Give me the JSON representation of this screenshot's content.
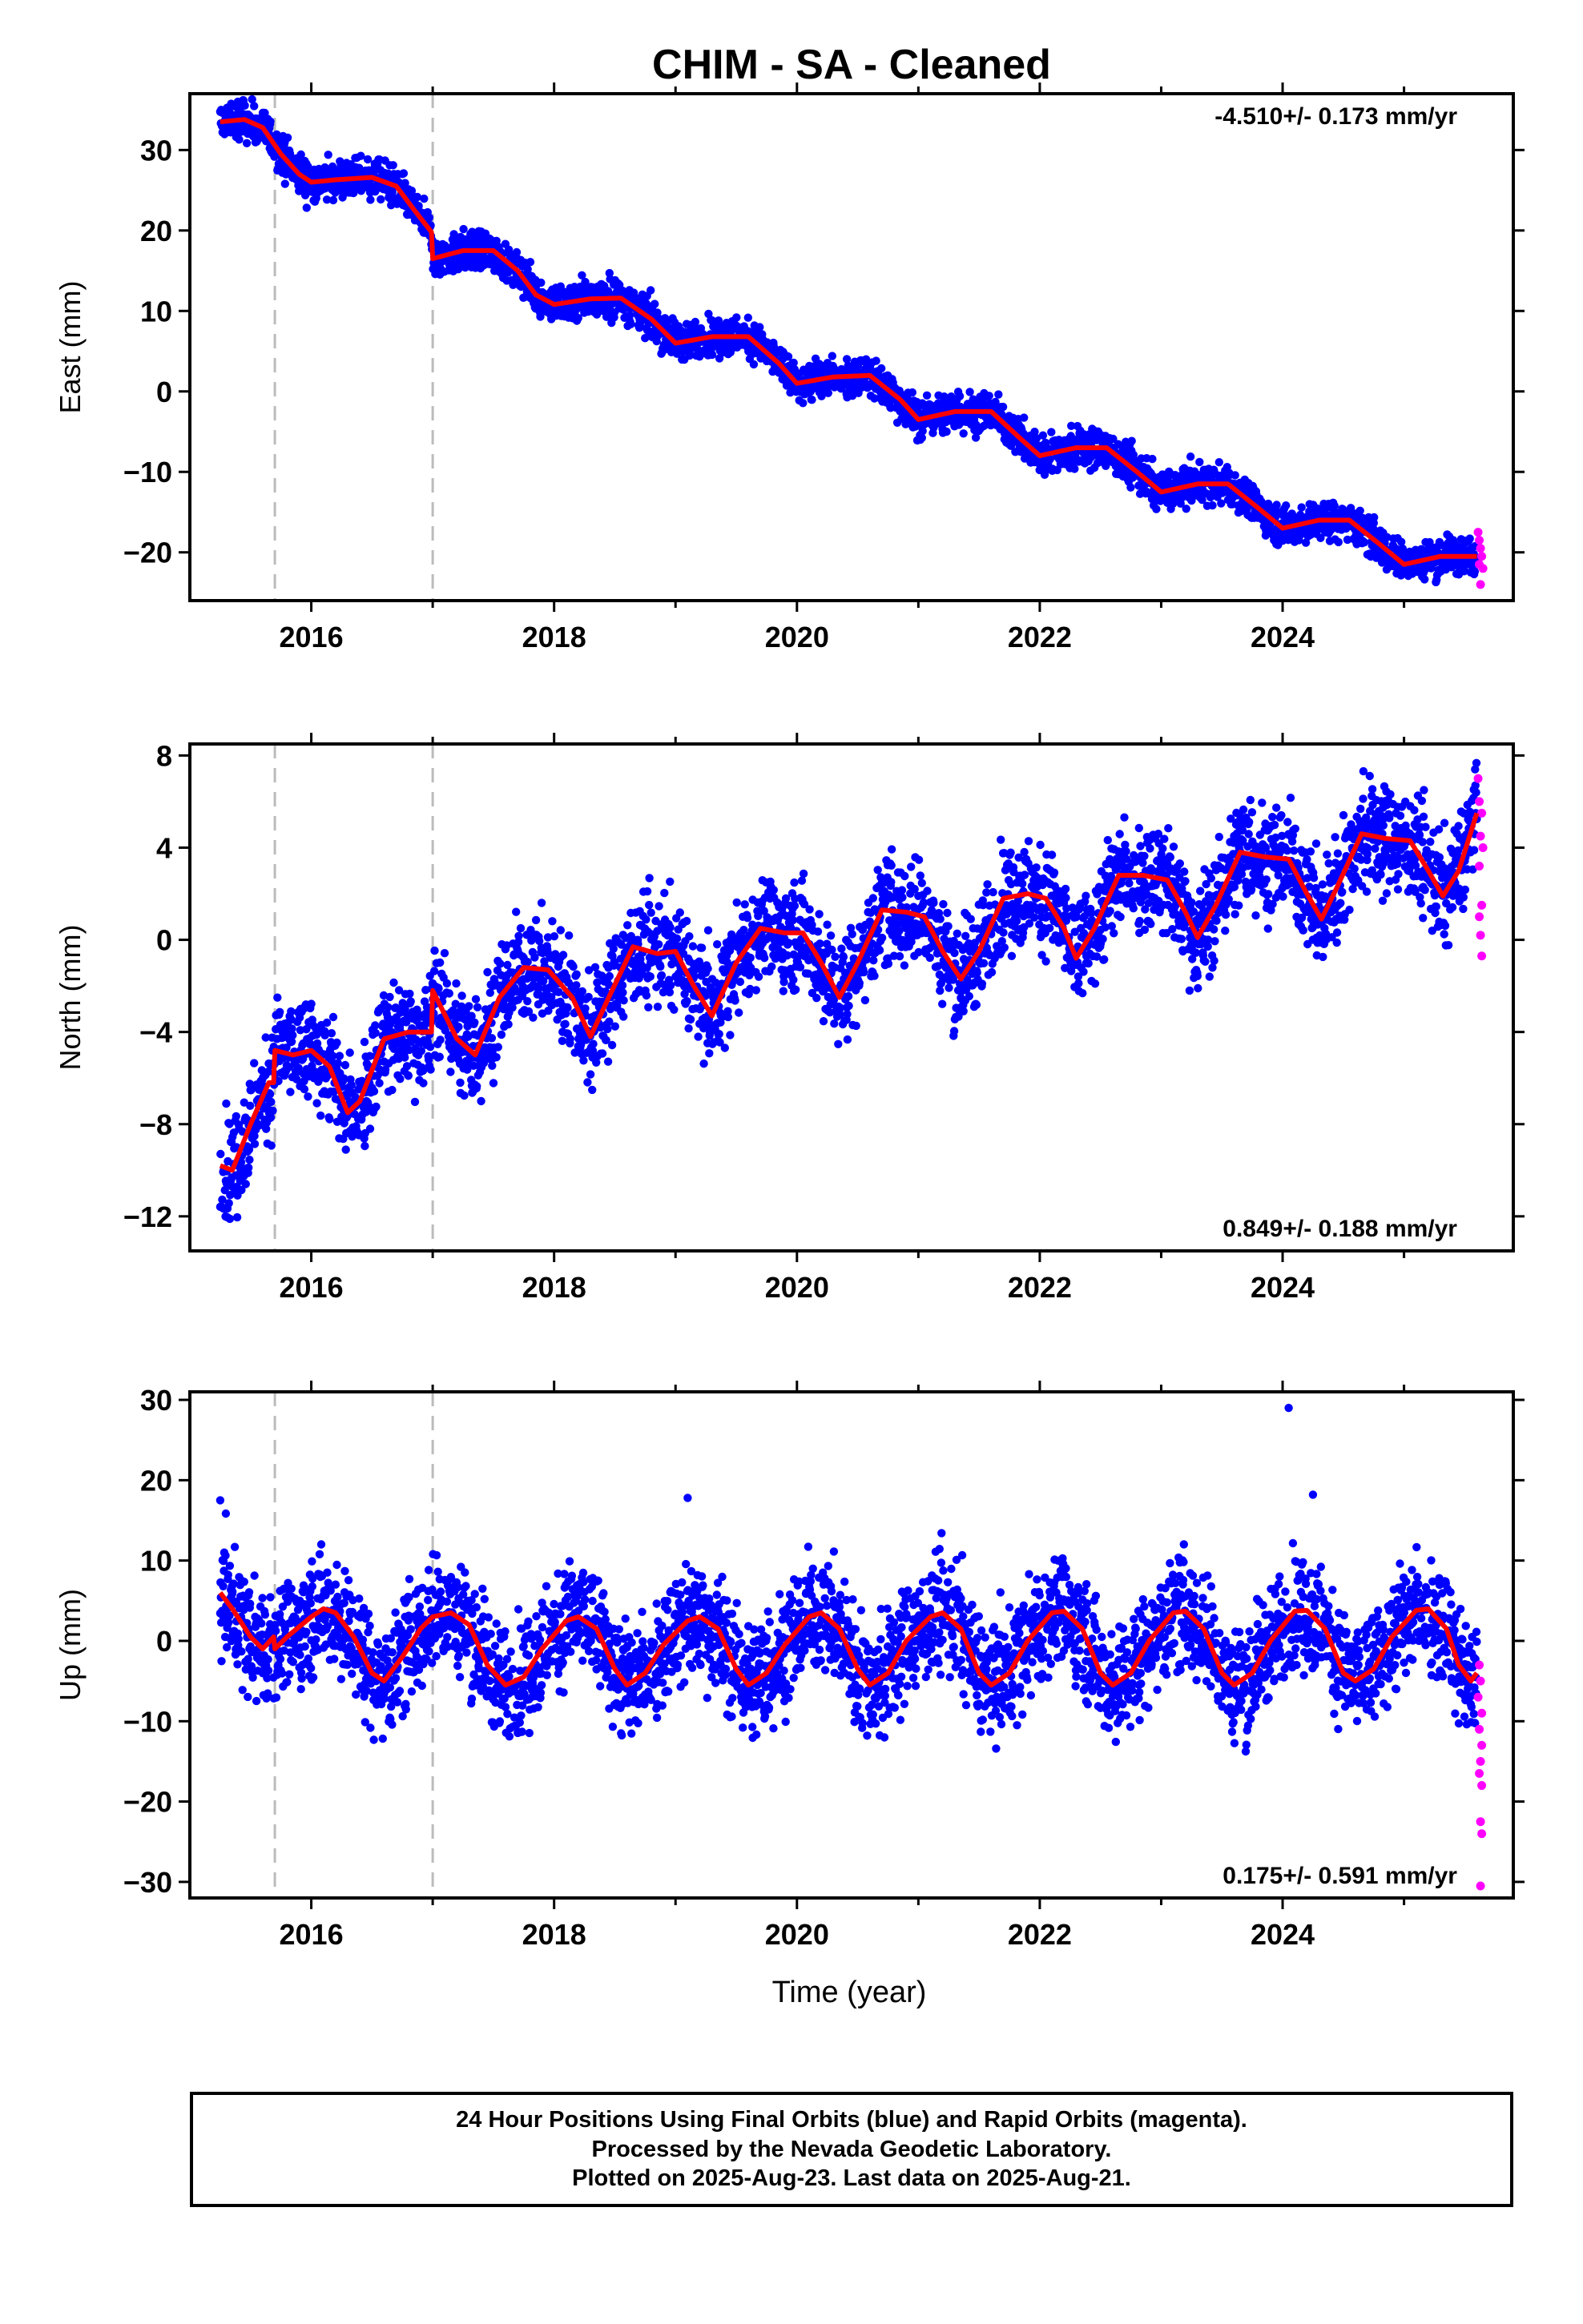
{
  "colors": {
    "final": "#0000ff",
    "rapid": "#ff00ff",
    "model": "#ff0000",
    "steps": "#bbbbbb"
  },
  "chart_data": {
    "type": "scatter",
    "title": "CHIM  - SA - Cleaned",
    "xlabel": "Time (year)",
    "xlim": [
      2015.0,
      2025.9
    ],
    "steps": [
      2015.7,
      2017.0
    ],
    "panels": [
      {
        "ylabel": "East (mm)",
        "ylim": [
          -26,
          37
        ],
        "yticks": [
          -20,
          -10,
          0,
          10,
          20,
          30
        ],
        "rate": "-4.510+/- 0.173 mm/yr",
        "rate_pos": "top-right",
        "noise": 1.2,
        "model": [
          [
            2015.25,
            33.5
          ],
          [
            2015.45,
            33.8
          ],
          [
            2015.6,
            32.8
          ],
          [
            2015.75,
            29.5
          ],
          [
            2015.9,
            27
          ],
          [
            2016.0,
            26
          ],
          [
            2016.2,
            26.3
          ],
          [
            2016.5,
            26.6
          ],
          [
            2016.7,
            25.5
          ],
          [
            2016.85,
            22.5
          ],
          [
            2016.99,
            19.8
          ],
          [
            2017.0,
            16.5
          ],
          [
            2017.25,
            17.5
          ],
          [
            2017.5,
            17.5
          ],
          [
            2017.7,
            15
          ],
          [
            2017.85,
            12
          ],
          [
            2018.0,
            10.8
          ],
          [
            2018.3,
            11.5
          ],
          [
            2018.55,
            11.6
          ],
          [
            2018.8,
            9
          ],
          [
            2019.0,
            6
          ],
          [
            2019.3,
            6.8
          ],
          [
            2019.6,
            6.8
          ],
          [
            2019.85,
            3.5
          ],
          [
            2020.0,
            1
          ],
          [
            2020.3,
            1.8
          ],
          [
            2020.6,
            2
          ],
          [
            2020.85,
            -1
          ],
          [
            2021.0,
            -3.5
          ],
          [
            2021.3,
            -2.5
          ],
          [
            2021.6,
            -2.5
          ],
          [
            2021.85,
            -6
          ],
          [
            2022.0,
            -8
          ],
          [
            2022.3,
            -7
          ],
          [
            2022.55,
            -7
          ],
          [
            2022.8,
            -10
          ],
          [
            2023.0,
            -12.5
          ],
          [
            2023.3,
            -11.5
          ],
          [
            2023.55,
            -11.5
          ],
          [
            2023.8,
            -14.5
          ],
          [
            2024.0,
            -17
          ],
          [
            2024.3,
            -16
          ],
          [
            2024.55,
            -16
          ],
          [
            2024.8,
            -19
          ],
          [
            2025.0,
            -21.5
          ],
          [
            2025.3,
            -20.5
          ],
          [
            2025.6,
            -20.5
          ]
        ],
        "rapid": [
          [
            2025.61,
            -17.5
          ],
          [
            2025.62,
            -18.5
          ],
          [
            2025.63,
            -19.5
          ],
          [
            2025.64,
            -20.5
          ],
          [
            2025.62,
            -21.5
          ],
          [
            2025.65,
            -22
          ],
          [
            2025.63,
            -24
          ]
        ]
      },
      {
        "ylabel": "North (mm)",
        "ylim": [
          -13.5,
          8.5
        ],
        "yticks": [
          -12,
          -8,
          -4,
          0,
          4,
          8
        ],
        "rate": "0.849+/- 0.188 mm/yr",
        "rate_pos": "bottom-right",
        "noise": 1.15,
        "model": [
          [
            2015.25,
            -9.8
          ],
          [
            2015.35,
            -10
          ],
          [
            2015.5,
            -8
          ],
          [
            2015.65,
            -6.2
          ],
          [
            2015.69,
            -6.2
          ],
          [
            2015.7,
            -4.8
          ],
          [
            2015.85,
            -5
          ],
          [
            2016.0,
            -4.8
          ],
          [
            2016.15,
            -5.5
          ],
          [
            2016.3,
            -7.5
          ],
          [
            2016.4,
            -7
          ],
          [
            2016.6,
            -4.3
          ],
          [
            2016.8,
            -4
          ],
          [
            2016.99,
            -4
          ],
          [
            2017.0,
            -2.2
          ],
          [
            2017.2,
            -4.3
          ],
          [
            2017.35,
            -5
          ],
          [
            2017.55,
            -2.5
          ],
          [
            2017.75,
            -1.2
          ],
          [
            2017.95,
            -1.3
          ],
          [
            2018.15,
            -2.5
          ],
          [
            2018.3,
            -4.2
          ],
          [
            2018.45,
            -2.5
          ],
          [
            2018.65,
            -0.3
          ],
          [
            2018.85,
            -0.6
          ],
          [
            2019.0,
            -0.5
          ],
          [
            2019.15,
            -2
          ],
          [
            2019.3,
            -3.3
          ],
          [
            2019.5,
            -1
          ],
          [
            2019.7,
            0.5
          ],
          [
            2019.9,
            0.3
          ],
          [
            2020.05,
            0.3
          ],
          [
            2020.2,
            -1
          ],
          [
            2020.35,
            -2.5
          ],
          [
            2020.5,
            -1
          ],
          [
            2020.7,
            1.3
          ],
          [
            2020.9,
            1.2
          ],
          [
            2021.05,
            1
          ],
          [
            2021.2,
            -0.5
          ],
          [
            2021.35,
            -1.7
          ],
          [
            2021.5,
            -0.5
          ],
          [
            2021.7,
            1.8
          ],
          [
            2021.9,
            2
          ],
          [
            2022.05,
            1.8
          ],
          [
            2022.2,
            0.5
          ],
          [
            2022.3,
            -0.8
          ],
          [
            2022.45,
            0.5
          ],
          [
            2022.65,
            2.8
          ],
          [
            2022.85,
            2.8
          ],
          [
            2023.05,
            2.6
          ],
          [
            2023.2,
            1.2
          ],
          [
            2023.3,
            0.1
          ],
          [
            2023.45,
            1.5
          ],
          [
            2023.65,
            3.8
          ],
          [
            2023.85,
            3.6
          ],
          [
            2024.05,
            3.5
          ],
          [
            2024.2,
            2
          ],
          [
            2024.32,
            0.9
          ],
          [
            2024.45,
            2.3
          ],
          [
            2024.65,
            4.6
          ],
          [
            2024.85,
            4.4
          ],
          [
            2025.05,
            4.3
          ],
          [
            2025.2,
            3
          ],
          [
            2025.32,
            1.9
          ],
          [
            2025.45,
            3
          ],
          [
            2025.6,
            5.5
          ]
        ],
        "rapid": [
          [
            2025.61,
            7
          ],
          [
            2025.62,
            6
          ],
          [
            2025.64,
            5.5
          ],
          [
            2025.63,
            4.5
          ],
          [
            2025.65,
            4
          ],
          [
            2025.62,
            3.2
          ],
          [
            2025.64,
            1.5
          ],
          [
            2025.62,
            1
          ],
          [
            2025.63,
            0.2
          ],
          [
            2025.64,
            -0.7
          ]
        ]
      },
      {
        "ylabel": "Up (mm)",
        "ylim": [
          -32,
          31
        ],
        "yticks": [
          -30,
          -20,
          -10,
          0,
          10,
          20,
          30
        ],
        "rate": "0.175+/- 0.591 mm/yr",
        "rate_pos": "bottom-right",
        "noise": 3.6,
        "model": [
          [
            2015.25,
            6
          ],
          [
            2015.35,
            4
          ],
          [
            2015.5,
            0.5
          ],
          [
            2015.6,
            -1
          ],
          [
            2015.69,
            0.5
          ],
          [
            2015.7,
            -1
          ],
          [
            2015.8,
            0.5
          ],
          [
            2016.0,
            3
          ],
          [
            2016.1,
            4
          ],
          [
            2016.2,
            3.5
          ],
          [
            2016.35,
            0.5
          ],
          [
            2016.5,
            -4
          ],
          [
            2016.6,
            -5
          ],
          [
            2016.75,
            -2
          ],
          [
            2016.9,
            1.5
          ],
          [
            2017.0,
            3
          ],
          [
            2017.15,
            3.5
          ],
          [
            2017.3,
            2
          ],
          [
            2017.45,
            -3
          ],
          [
            2017.6,
            -5.5
          ],
          [
            2017.75,
            -4.5
          ],
          [
            2017.9,
            -1
          ],
          [
            2018.1,
            2.5
          ],
          [
            2018.2,
            3
          ],
          [
            2018.35,
            1.5
          ],
          [
            2018.5,
            -3.5
          ],
          [
            2018.6,
            -5.5
          ],
          [
            2018.75,
            -4
          ],
          [
            2018.9,
            -0.5
          ],
          [
            2019.1,
            2.5
          ],
          [
            2019.2,
            3
          ],
          [
            2019.35,
            1.5
          ],
          [
            2019.5,
            -3.5
          ],
          [
            2019.6,
            -5.5
          ],
          [
            2019.75,
            -4
          ],
          [
            2019.9,
            -0.5
          ],
          [
            2020.1,
            3
          ],
          [
            2020.2,
            3.5
          ],
          [
            2020.35,
            1.5
          ],
          [
            2020.5,
            -3.5
          ],
          [
            2020.6,
            -5.5
          ],
          [
            2020.75,
            -4
          ],
          [
            2020.9,
            0
          ],
          [
            2021.1,
            3
          ],
          [
            2021.2,
            3.5
          ],
          [
            2021.35,
            1.5
          ],
          [
            2021.5,
            -4
          ],
          [
            2021.6,
            -5.5
          ],
          [
            2021.75,
            -4
          ],
          [
            2021.9,
            0
          ],
          [
            2022.1,
            3.5
          ],
          [
            2022.2,
            3.7
          ],
          [
            2022.35,
            1.5
          ],
          [
            2022.5,
            -4
          ],
          [
            2022.6,
            -5.5
          ],
          [
            2022.75,
            -4
          ],
          [
            2022.9,
            0
          ],
          [
            2023.1,
            3.5
          ],
          [
            2023.2,
            3.7
          ],
          [
            2023.35,
            1.5
          ],
          [
            2023.5,
            -4
          ],
          [
            2023.6,
            -5.5
          ],
          [
            2023.75,
            -4
          ],
          [
            2023.9,
            0
          ],
          [
            2024.1,
            3.7
          ],
          [
            2024.2,
            3.8
          ],
          [
            2024.35,
            1.5
          ],
          [
            2024.5,
            -4
          ],
          [
            2024.6,
            -5
          ],
          [
            2024.75,
            -3.5
          ],
          [
            2024.9,
            0.5
          ],
          [
            2025.1,
            3.8
          ],
          [
            2025.2,
            4
          ],
          [
            2025.35,
            1.5
          ],
          [
            2025.45,
            -3
          ],
          [
            2025.55,
            -5
          ],
          [
            2025.6,
            -4
          ]
        ],
        "outliers": [
          [
            2015.25,
            17.5
          ],
          [
            2019.1,
            17.8
          ],
          [
            2024.05,
            29
          ],
          [
            2024.25,
            18.2
          ]
        ],
        "rapid": [
          [
            2025.62,
            -3
          ],
          [
            2025.63,
            -5
          ],
          [
            2025.61,
            -7
          ],
          [
            2025.64,
            -9
          ],
          [
            2025.62,
            -11
          ],
          [
            2025.64,
            -13
          ],
          [
            2025.63,
            -15
          ],
          [
            2025.62,
            -16.5
          ],
          [
            2025.64,
            -18
          ],
          [
            2025.63,
            -22.5
          ],
          [
            2025.64,
            -24
          ],
          [
            2025.63,
            -30.5
          ]
        ]
      }
    ],
    "xticks": [
      2016,
      2018,
      2020,
      2022,
      2024
    ]
  },
  "footer": {
    "line1": "24 Hour Positions Using Final Orbits (blue) and Rapid Orbits (magenta).",
    "line2": "Processed by the Nevada Geodetic Laboratory.",
    "line3": "Plotted on 2025-Aug-23. Last data on 2025-Aug-21."
  }
}
